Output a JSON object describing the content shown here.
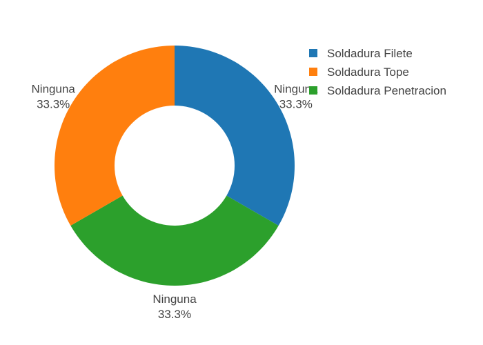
{
  "chart_data": {
    "type": "pie",
    "hole": true,
    "slices": [
      {
        "name": "Soldadura Filete",
        "label": "Ninguna",
        "percent_text": "33.3%",
        "value": 1,
        "color": "#1f77b4"
      },
      {
        "name": "Soldadura Penetracion",
        "label": "Ninguna",
        "percent_text": "33.3%",
        "value": 1,
        "color": "#2ca02c"
      },
      {
        "name": "Soldadura Tope",
        "label": "Ninguna",
        "percent_text": "33.3%",
        "value": 1,
        "color": "#ff7f0e"
      }
    ],
    "legend": {
      "placement": "top-right",
      "entries": [
        {
          "name": "Soldadura Filete",
          "color": "#1f77b4"
        },
        {
          "name": "Soldadura Tope",
          "color": "#ff7f0e"
        },
        {
          "name": "Soldadura Penetracion",
          "color": "#2ca02c"
        }
      ]
    }
  }
}
